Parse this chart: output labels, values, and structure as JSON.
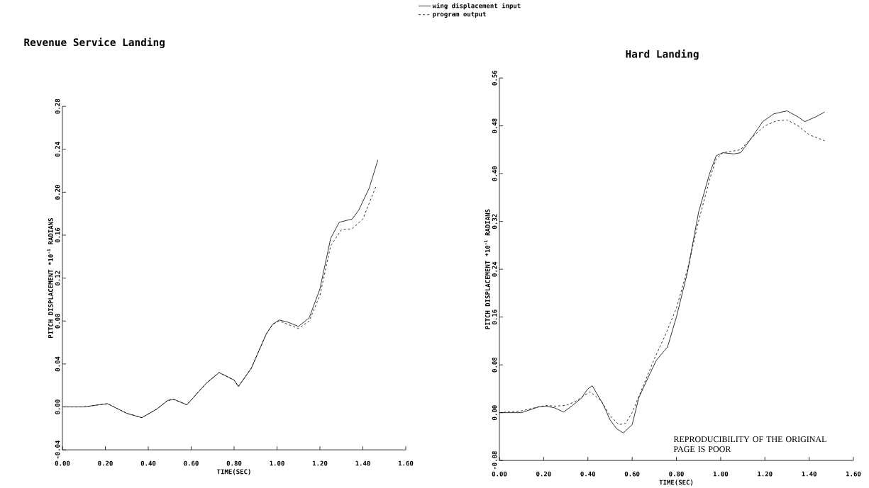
{
  "chart_data": [
    {
      "type": "line",
      "title": "Revenue Service Landing",
      "xlabel": "TIME(SEC)",
      "ylabel": "PITCH DISPLACEMENT *10$^{-1}$ RADIANS",
      "legend": "top right",
      "xlim": [
        0,
        1.6
      ],
      "ylim": [
        -0.04,
        0.28
      ],
      "xticks": [
        {
          "value": 0,
          "label": "0.00"
        },
        {
          "value": 0.2,
          "label": "0.20"
        },
        {
          "value": 0.4,
          "label": "0.40"
        },
        {
          "value": 0.6,
          "label": "0.60"
        },
        {
          "value": 0.8,
          "label": "0.80"
        },
        {
          "value": 1.0,
          "label": "1.00"
        },
        {
          "value": 1.2,
          "label": "1.20"
        },
        {
          "value": 1.4,
          "label": "1.40"
        },
        {
          "value": 1.6,
          "label": "1.60"
        }
      ],
      "yticks": [
        {
          "value": -0.04,
          "label": "-0.04"
        },
        {
          "value": 0,
          "label": "0.00"
        },
        {
          "value": 0.04,
          "label": "0.04"
        },
        {
          "value": 0.08,
          "label": "0.08"
        },
        {
          "value": 0.12,
          "label": "0.12"
        },
        {
          "value": 0.16,
          "label": "0.16"
        },
        {
          "value": 0.2,
          "label": "0.20"
        },
        {
          "value": 0.24,
          "label": "0.24"
        },
        {
          "value": 0.28,
          "label": "0.28"
        }
      ],
      "series": [
        {
          "name": "wing displacement input",
          "color": "#000000",
          "line_style": "solid",
          "x": [
            0,
            0.1,
            0.17,
            0.21,
            0.3,
            0.37,
            0.44,
            0.49,
            0.52,
            0.58,
            0.67,
            0.73,
            0.8,
            0.82,
            0.88,
            0.95,
            0.98,
            1.01,
            1.05,
            1.1,
            1.15,
            1.2,
            1.25,
            1.29,
            1.35,
            1.38,
            1.43,
            1.47
          ],
          "values": [
            0,
            0,
            0.002,
            0.003,
            -0.006,
            -0.01,
            -0.002,
            0.006,
            0.007,
            0.002,
            0.022,
            0.032,
            0.025,
            0.019,
            0.036,
            0.068,
            0.077,
            0.081,
            0.079,
            0.075,
            0.083,
            0.11,
            0.157,
            0.172,
            0.175,
            0.183,
            0.204,
            0.23
          ]
        },
        {
          "name": "program output",
          "color": "#000000",
          "line_style": "dashed",
          "x": [
            0,
            0.1,
            0.17,
            0.21,
            0.3,
            0.37,
            0.44,
            0.49,
            0.52,
            0.58,
            0.67,
            0.73,
            0.8,
            0.82,
            0.88,
            0.95,
            0.98,
            1.01,
            1.05,
            1.1,
            1.15,
            1.2,
            1.25,
            1.3,
            1.35,
            1.4,
            1.43,
            1.46
          ],
          "values": [
            0,
            0,
            0.002,
            0.003,
            -0.006,
            -0.01,
            -0.002,
            0.006,
            0.007,
            0.002,
            0.022,
            0.032,
            0.025,
            0.019,
            0.036,
            0.068,
            0.077,
            0.08,
            0.077,
            0.073,
            0.08,
            0.104,
            0.15,
            0.165,
            0.166,
            0.175,
            0.19,
            0.205
          ]
        }
      ]
    },
    {
      "type": "line",
      "title": "Hard Landing",
      "xlabel": "TIME(SEC)",
      "ylabel": "PITCH DISPLACEMENT *10$^{-1}$ RADIANS",
      "annotations": [
        "REPRODUCIBILITY OF THE ORIGINAL PAGE IS POOR"
      ],
      "xlim": [
        0,
        1.6
      ],
      "ylim": [
        -0.08,
        0.56
      ],
      "xticks": [
        {
          "value": 0,
          "label": "0.00"
        },
        {
          "value": 0.2,
          "label": "0.20"
        },
        {
          "value": 0.4,
          "label": "0.40"
        },
        {
          "value": 0.6,
          "label": "0.60"
        },
        {
          "value": 0.8,
          "label": "0.80"
        },
        {
          "value": 1.0,
          "label": "1.00"
        },
        {
          "value": 1.2,
          "label": "1.20"
        },
        {
          "value": 1.4,
          "label": "1.40"
        },
        {
          "value": 1.6,
          "label": "1.60"
        }
      ],
      "yticks": [
        {
          "value": -0.08,
          "label": "-0.08"
        },
        {
          "value": 0,
          "label": "0.00"
        },
        {
          "value": 0.08,
          "label": "0.08"
        },
        {
          "value": 0.16,
          "label": "0.16"
        },
        {
          "value": 0.24,
          "label": "0.24"
        },
        {
          "value": 0.32,
          "label": "0.32"
        },
        {
          "value": 0.4,
          "label": "0.40"
        },
        {
          "value": 0.48,
          "label": "0.48"
        },
        {
          "value": 0.56,
          "label": "0.56"
        }
      ],
      "series": [
        {
          "color": "#000000",
          "line_style": "solid",
          "x": [
            0,
            0.1,
            0.18,
            0.21,
            0.25,
            0.29,
            0.33,
            0.37,
            0.4,
            0.42,
            0.47,
            0.5,
            0.53,
            0.56,
            0.6,
            0.63,
            0.68,
            0.71,
            0.76,
            0.8,
            0.85,
            0.9,
            0.95,
            0.98,
            1.01,
            1.06,
            1.09,
            1.14,
            1.19,
            1.24,
            1.3,
            1.35,
            1.38,
            1.43,
            1.47
          ],
          "values": [
            0,
            0,
            0.01,
            0.011,
            0.008,
            0.001,
            0.012,
            0.024,
            0.04,
            0.045,
            0.013,
            -0.012,
            -0.027,
            -0.034,
            -0.02,
            0.025,
            0.065,
            0.088,
            0.11,
            0.16,
            0.235,
            0.335,
            0.4,
            0.43,
            0.435,
            0.433,
            0.435,
            0.46,
            0.487,
            0.5,
            0.505,
            0.495,
            0.487,
            0.495,
            0.503
          ]
        },
        {
          "color": "#000000",
          "line_style": "dashed",
          "x": [
            0,
            0.1,
            0.18,
            0.21,
            0.25,
            0.3,
            0.34,
            0.38,
            0.41,
            0.46,
            0.5,
            0.54,
            0.57,
            0.6,
            0.65,
            0.7,
            0.75,
            0.8,
            0.85,
            0.9,
            0.95,
            0.98,
            1.01,
            1.06,
            1.09,
            1.14,
            1.2,
            1.25,
            1.3,
            1.35,
            1.4,
            1.47
          ],
          "values": [
            0,
            0.003,
            0.01,
            0.012,
            0.011,
            0.012,
            0.018,
            0.028,
            0.035,
            0.02,
            -0.005,
            -0.02,
            -0.018,
            0,
            0.045,
            0.09,
            0.13,
            0.175,
            0.24,
            0.32,
            0.39,
            0.425,
            0.435,
            0.438,
            0.44,
            0.46,
            0.48,
            0.488,
            0.49,
            0.48,
            0.465,
            0.455
          ]
        }
      ]
    }
  ]
}
